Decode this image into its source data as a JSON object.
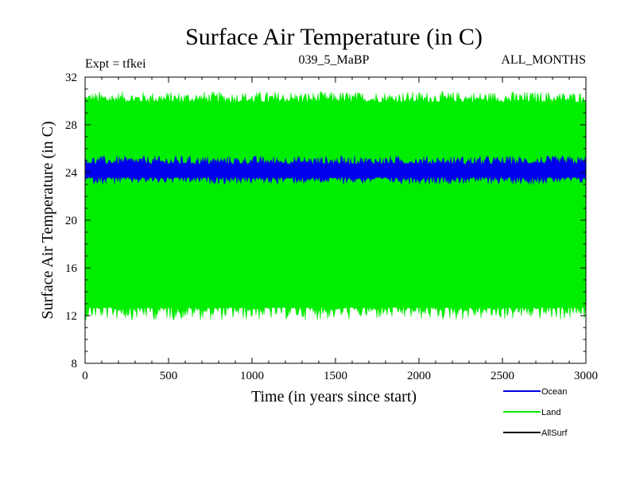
{
  "chart_data": {
    "type": "line",
    "title": "Surface Air Temperature (in C)",
    "subtitle_left": "Expt = tfkei",
    "subtitle_center": "039_5_MaBP",
    "subtitle_right": "ALL_MONTHS",
    "xlabel": "Time (in years since start)",
    "ylabel": "Surface Air Temperature (in C)",
    "xlim": [
      0,
      3000
    ],
    "ylim": [
      8,
      32
    ],
    "x_major_ticks": [
      0,
      500,
      1000,
      1500,
      2000,
      2500,
      3000
    ],
    "x_tick_labels": [
      "0",
      "500",
      "1000",
      "1500",
      "2000",
      "2500",
      "3000"
    ],
    "y_major_ticks": [
      8,
      12,
      16,
      20,
      24,
      28,
      32
    ],
    "y_tick_labels": [
      "8",
      "12",
      "16",
      "20",
      "24",
      "28",
      "32"
    ],
    "grid": false,
    "legend_position": "bottom-right",
    "series": [
      {
        "name": "Land",
        "color": "#00ee00",
        "band_min": 12.4,
        "band_max": 30.2,
        "spike_min": 11.6,
        "spike_max": 30.8
      },
      {
        "name": "Ocean",
        "color": "#0000ee",
        "band_min": 23.3,
        "band_max": 25.0,
        "spike_min": 23.0,
        "spike_max": 25.4
      },
      {
        "name": "AllSurf",
        "color": "#000000"
      }
    ]
  }
}
